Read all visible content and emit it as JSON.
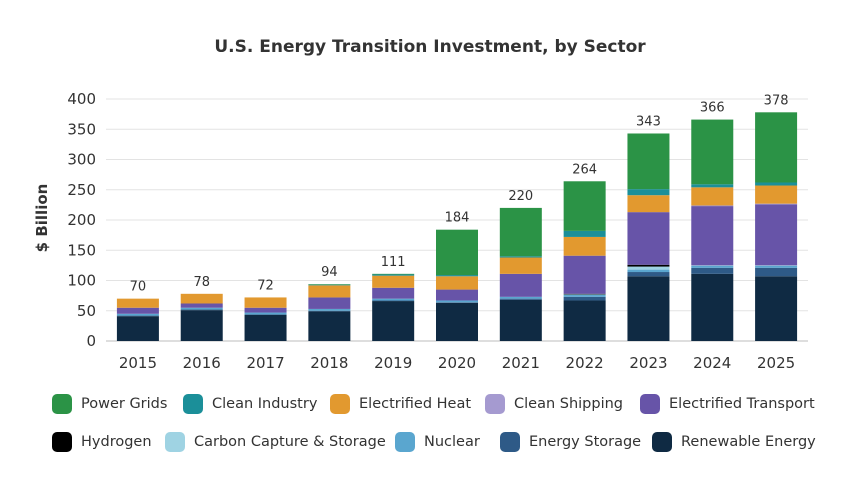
{
  "chart_data": {
    "type": "bar",
    "stacked": true,
    "title": "U.S. Energy Transition Investment, by Sector",
    "ylabel": "$ Billion",
    "xlabel": "",
    "ylim": [
      0,
      400
    ],
    "yticks": [
      0,
      50,
      100,
      150,
      200,
      250,
      300,
      350,
      400
    ],
    "categories": [
      "2015",
      "2016",
      "2017",
      "2018",
      "2019",
      "2020",
      "2021",
      "2022",
      "2023",
      "2024",
      "2025"
    ],
    "totals": [
      70,
      78,
      72,
      94,
      111,
      184,
      220,
      264,
      343,
      366,
      378
    ],
    "series": [
      {
        "name": "Renewable Energy",
        "color": "#0f2a43",
        "values": [
          41,
          51,
          43,
          49,
          66,
          63,
          68,
          67,
          107,
          111,
          107
        ]
      },
      {
        "name": "Energy Storage",
        "color": "#2e5a87",
        "values": [
          1,
          1,
          1,
          1,
          1,
          1,
          2,
          6,
          7,
          10,
          14
        ]
      },
      {
        "name": "Nuclear",
        "color": "#5aa6cf",
        "values": [
          3,
          3,
          3,
          3,
          3,
          3,
          3,
          3,
          4,
          3,
          3
        ]
      },
      {
        "name": "Carbon Capture & Storage",
        "color": "#9fd3e3",
        "values": [
          0,
          0,
          0,
          0,
          0,
          0,
          0,
          1,
          5,
          1,
          1
        ]
      },
      {
        "name": "Hydrogen",
        "color": "#000000",
        "values": [
          0,
          0,
          0,
          0,
          0,
          0,
          0,
          1,
          3,
          0,
          0
        ]
      },
      {
        "name": "Electrified Transport",
        "color": "#6754a8",
        "values": [
          10,
          7,
          8,
          19,
          18,
          18,
          38,
          63,
          87,
          98,
          101
        ]
      },
      {
        "name": "Clean Shipping",
        "color": "#a59ad0",
        "values": [
          0,
          0,
          0,
          0,
          0,
          0,
          0,
          0,
          0,
          1,
          1
        ]
      },
      {
        "name": "Electrified Heat",
        "color": "#e2992f",
        "values": [
          15,
          16,
          17,
          20,
          20,
          22,
          27,
          31,
          28,
          30,
          30
        ]
      },
      {
        "name": "Clean Industry",
        "color": "#1b8f99",
        "values": [
          0,
          0,
          0,
          1,
          2,
          2,
          2,
          10,
          10,
          5,
          5
        ]
      },
      {
        "name": "Power Grids",
        "color": "#2b9346",
        "values": [
          0,
          0,
          0,
          1,
          1,
          75,
          80,
          82,
          92,
          107,
          116
        ]
      }
    ],
    "legend": [
      [
        "Power Grids",
        "Clean Industry",
        "Electrified Heat",
        "Clean Shipping",
        "Electrified Transport"
      ],
      [
        "Hydrogen",
        "Carbon Capture & Storage",
        "Nuclear",
        "Energy Storage",
        "Renewable Energy"
      ]
    ]
  }
}
